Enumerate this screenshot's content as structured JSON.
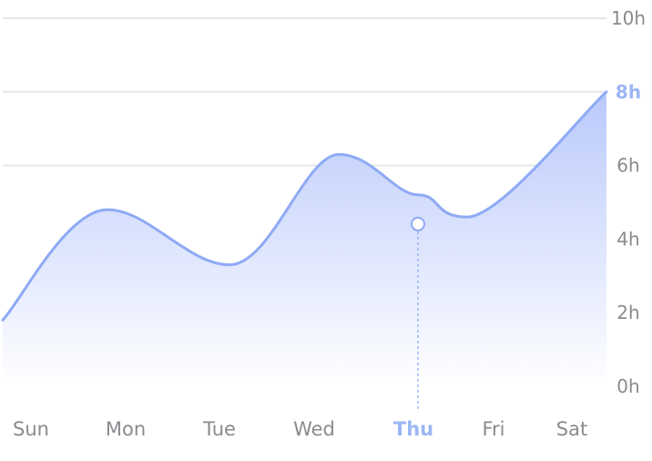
{
  "chart_data": {
    "type": "area",
    "categories": [
      "Sun",
      "Mon",
      "Tue",
      "Wed",
      "Thu",
      "Fri",
      "Sat"
    ],
    "y_tick_labels": [
      "0h",
      "2h",
      "4h",
      "6h",
      "8h",
      "10h"
    ],
    "y_ticks": [
      0,
      2,
      4,
      6,
      8,
      10
    ],
    "ylim": [
      0,
      10
    ],
    "series": [
      {
        "values": [
          1.8,
          4.8,
          3.3,
          6.3,
          5.2,
          4.6,
          8.0
        ]
      }
    ],
    "curve_start_value": 1.8,
    "curve_end_value": 8.0,
    "highlight": {
      "category": "Thu",
      "value": 5.2,
      "y_tick": "8h"
    },
    "gridlines_at": [
      6,
      8,
      10
    ],
    "colors": {
      "line": "#8eaaf5",
      "area_top": "#b9c9fb",
      "area_bottom": "#ffffff",
      "grid": "#e6e6e9",
      "tick": "#8a8a8f",
      "highlight": "#9bb6f4"
    }
  }
}
